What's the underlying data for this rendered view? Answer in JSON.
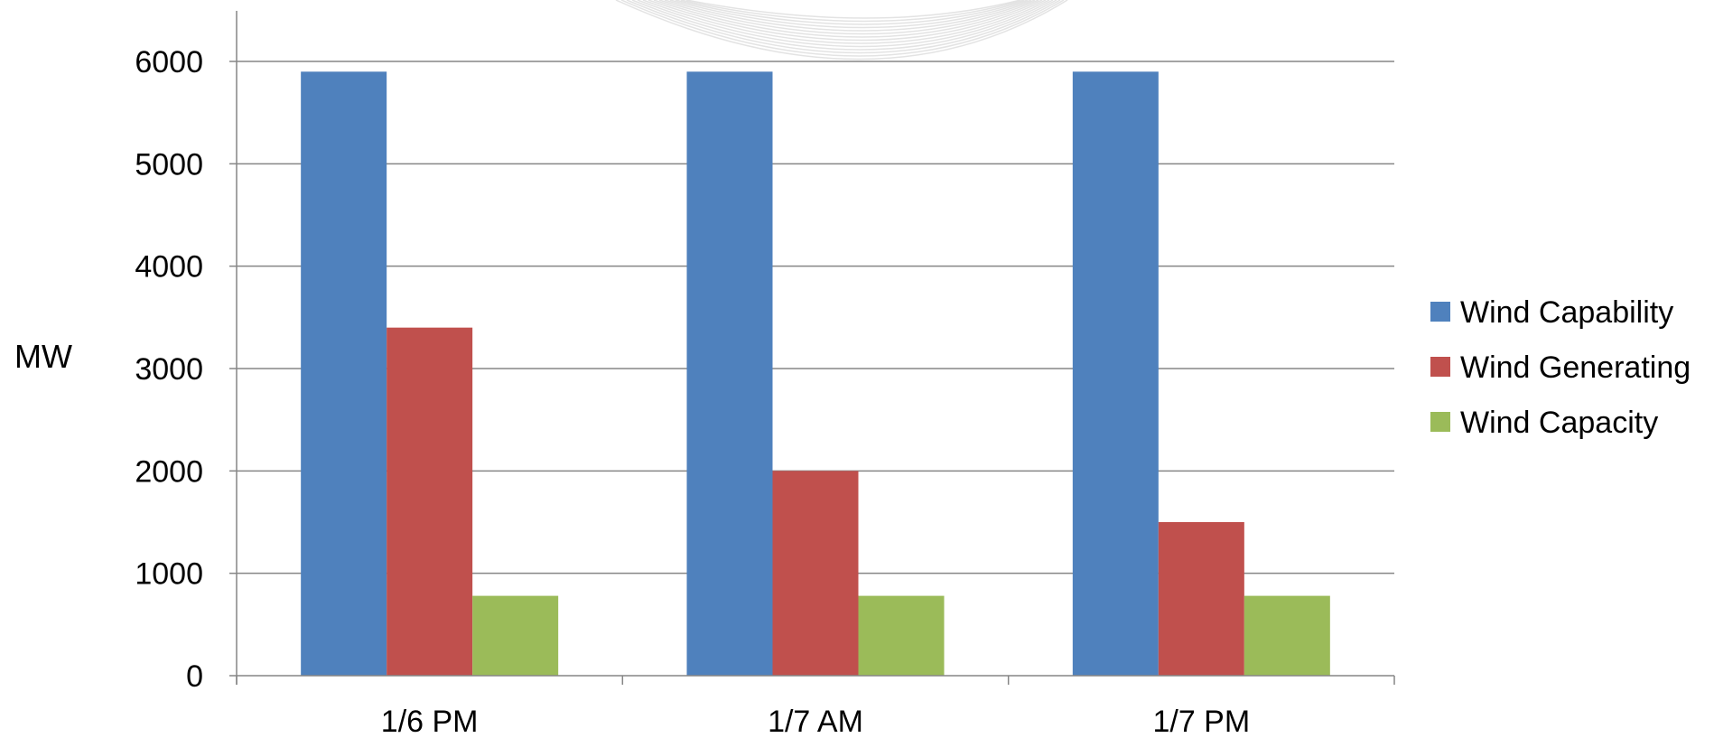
{
  "chart_data": {
    "type": "bar",
    "title": "",
    "xlabel": "",
    "ylabel": "MW",
    "ylim": [
      0,
      6000
    ],
    "yticks": [
      0,
      1000,
      2000,
      3000,
      4000,
      5000,
      6000
    ],
    "grid": true,
    "legend_position": "right",
    "categories": [
      "1/6 PM",
      "1/7 AM",
      "1/7 PM"
    ],
    "series": [
      {
        "name": "Wind Capability",
        "color": "#4F81BD",
        "values": [
          5900,
          5900,
          5900
        ]
      },
      {
        "name": "Wind Generating",
        "color": "#C0504D",
        "values": [
          3400,
          2000,
          1500
        ]
      },
      {
        "name": "Wind Capacity",
        "color": "#9BBB59",
        "values": [
          780,
          780,
          780
        ]
      }
    ]
  }
}
